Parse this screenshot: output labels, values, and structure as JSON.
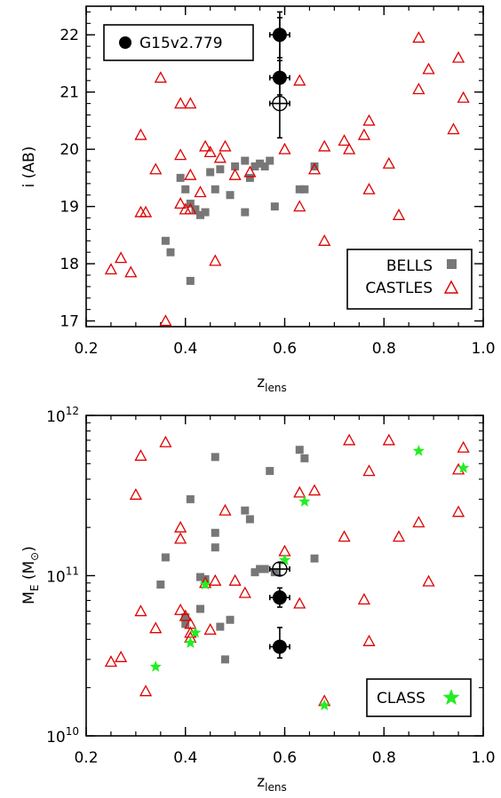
{
  "chart_data": [
    {
      "type": "scatter",
      "xlabel": "z",
      "xlabel_sub": "lens",
      "ylabel": "i (AB)",
      "xlim": [
        0.2,
        1.0
      ],
      "ylim": [
        16.9,
        22.5
      ],
      "x_ticks": [
        0.2,
        0.4,
        0.6,
        0.8,
        1.0
      ],
      "x_tick_labels": [
        "0.2",
        "0.4",
        "0.6",
        "0.8",
        "1.0"
      ],
      "y_ticks": [
        17,
        18,
        19,
        20,
        21,
        22
      ],
      "y_tick_labels": [
        "17",
        "18",
        "19",
        "20",
        "21",
        "22"
      ],
      "series": [
        {
          "name": "BELLS",
          "marker": "square",
          "color": "#777777",
          "points": [
            [
              0.36,
              18.4
            ],
            [
              0.37,
              18.2
            ],
            [
              0.39,
              19.5
            ],
            [
              0.4,
              19.3
            ],
            [
              0.41,
              19.05
            ],
            [
              0.41,
              17.7
            ],
            [
              0.42,
              18.95
            ],
            [
              0.43,
              18.85
            ],
            [
              0.44,
              18.9
            ],
            [
              0.45,
              19.6
            ],
            [
              0.46,
              19.3
            ],
            [
              0.47,
              19.65
            ],
            [
              0.49,
              19.2
            ],
            [
              0.5,
              19.7
            ],
            [
              0.52,
              19.8
            ],
            [
              0.52,
              18.9
            ],
            [
              0.53,
              19.5
            ],
            [
              0.54,
              19.7
            ],
            [
              0.55,
              19.75
            ],
            [
              0.56,
              19.7
            ],
            [
              0.57,
              19.8
            ],
            [
              0.58,
              19.0
            ],
            [
              0.63,
              19.3
            ],
            [
              0.64,
              19.3
            ],
            [
              0.66,
              19.7
            ]
          ]
        },
        {
          "name": "CASTLES",
          "marker": "triangle",
          "color": "#dd0000",
          "points": [
            [
              0.25,
              17.9
            ],
            [
              0.27,
              18.1
            ],
            [
              0.29,
              17.85
            ],
            [
              0.31,
              20.25
            ],
            [
              0.31,
              18.9
            ],
            [
              0.32,
              18.9
            ],
            [
              0.34,
              19.65
            ],
            [
              0.35,
              21.25
            ],
            [
              0.36,
              17.0
            ],
            [
              0.39,
              20.8
            ],
            [
              0.39,
              19.9
            ],
            [
              0.39,
              19.05
            ],
            [
              0.4,
              18.95
            ],
            [
              0.41,
              20.8
            ],
            [
              0.41,
              19.55
            ],
            [
              0.41,
              18.95
            ],
            [
              0.43,
              19.25
            ],
            [
              0.44,
              20.05
            ],
            [
              0.45,
              19.95
            ],
            [
              0.46,
              18.05
            ],
            [
              0.47,
              19.85
            ],
            [
              0.48,
              20.05
            ],
            [
              0.5,
              19.55
            ],
            [
              0.53,
              19.6
            ],
            [
              0.6,
              20.0
            ],
            [
              0.63,
              21.2
            ],
            [
              0.63,
              19.0
            ],
            [
              0.66,
              19.65
            ],
            [
              0.68,
              20.05
            ],
            [
              0.68,
              18.4
            ],
            [
              0.72,
              20.15
            ],
            [
              0.73,
              20.0
            ],
            [
              0.76,
              20.25
            ],
            [
              0.77,
              20.5
            ],
            [
              0.77,
              19.3
            ],
            [
              0.81,
              19.75
            ],
            [
              0.83,
              18.85
            ],
            [
              0.87,
              21.05
            ],
            [
              0.87,
              21.95
            ],
            [
              0.89,
              21.4
            ],
            [
              0.94,
              20.35
            ],
            [
              0.95,
              21.6
            ],
            [
              0.96,
              20.9
            ]
          ]
        },
        {
          "name": "G15v2.779",
          "marker": "circle",
          "color": "#000000",
          "points": [
            [
              0.59,
              22.0
            ],
            [
              0.59,
              21.25
            ]
          ],
          "y_err": [
            [
              0.4,
              0.4
            ],
            [
              0.3,
              0.3
            ]
          ],
          "x_err": 0.02
        },
        {
          "name": "G15v2.779 (open)",
          "marker": "open-circle-cross",
          "color": "#000000",
          "points": [
            [
              0.59,
              20.8
            ]
          ],
          "y_err": [
            [
              1.5,
              0.6
            ]
          ],
          "x_err": 0.02
        }
      ],
      "legend_upper": {
        "position": "top-left",
        "label": "G15v2.779"
      },
      "legend_lower": {
        "position": "bottom-right",
        "labels": [
          "BELLS",
          "CASTLES"
        ]
      }
    },
    {
      "type": "scatter",
      "xlabel": "z",
      "xlabel_sub": "lens",
      "ylabel": "M",
      "ylabel_sub": "E",
      "ylabel_tail": " (M",
      "ylabel_end": ")",
      "ylabel_sun": "⊙",
      "yscale": "log",
      "xlim": [
        0.2,
        1.0
      ],
      "ylim": [
        10000000000.0,
        1000000000000.0
      ],
      "x_ticks": [
        0.2,
        0.4,
        0.6,
        0.8,
        1.0
      ],
      "x_tick_labels": [
        "0.2",
        "0.4",
        "0.6",
        "0.8",
        "1.0"
      ],
      "y_ticks": [
        10000000000.0,
        100000000000.0,
        1000000000000.0
      ],
      "y_tick_base": "10",
      "y_tick_exps": [
        "10",
        "11",
        "12"
      ],
      "series": [
        {
          "name": "BELLS",
          "marker": "square",
          "color": "#777777",
          "points": [
            [
              0.36,
              130000000000.0
            ],
            [
              0.35,
              88000000000.0
            ],
            [
              0.4,
              55000000000.0
            ],
            [
              0.4,
              50000000000.0
            ],
            [
              0.41,
              300000000000.0
            ],
            [
              0.43,
              98000000000.0
            ],
            [
              0.43,
              62000000000.0
            ],
            [
              0.44,
              95000000000.0
            ],
            [
              0.46,
              185000000000.0
            ],
            [
              0.46,
              150000000000.0
            ],
            [
              0.46,
              550000000000.0
            ],
            [
              0.47,
              48000000000.0
            ],
            [
              0.48,
              30000000000.0
            ],
            [
              0.49,
              53000000000.0
            ],
            [
              0.52,
              255000000000.0
            ],
            [
              0.53,
              225000000000.0
            ],
            [
              0.54,
              105000000000.0
            ],
            [
              0.55,
              110000000000.0
            ],
            [
              0.56,
              110000000000.0
            ],
            [
              0.57,
              450000000000.0
            ],
            [
              0.58,
              105000000000.0
            ],
            [
              0.63,
              610000000000.0
            ],
            [
              0.64,
              540000000000.0
            ],
            [
              0.66,
              128000000000.0
            ]
          ]
        },
        {
          "name": "CASTLES",
          "marker": "triangle",
          "color": "#dd0000",
          "points": [
            [
              0.25,
              29000000000.0
            ],
            [
              0.27,
              31000000000.0
            ],
            [
              0.3,
              320000000000.0
            ],
            [
              0.31,
              560000000000.0
            ],
            [
              0.31,
              60000000000.0
            ],
            [
              0.32,
              19000000000.0
            ],
            [
              0.34,
              47000000000.0
            ],
            [
              0.36,
              680000000000.0
            ],
            [
              0.39,
              200000000000.0
            ],
            [
              0.39,
              170000000000.0
            ],
            [
              0.39,
              61000000000.0
            ],
            [
              0.4,
              56000000000.0
            ],
            [
              0.41,
              41000000000.0
            ],
            [
              0.41,
              44000000000.0
            ],
            [
              0.41,
              50000000000.0
            ],
            [
              0.44,
              90000000000.0
            ],
            [
              0.45,
              46000000000.0
            ],
            [
              0.46,
              93000000000.0
            ],
            [
              0.48,
              255000000000.0
            ],
            [
              0.5,
              93000000000.0
            ],
            [
              0.52,
              78000000000.0
            ],
            [
              0.6,
              142000000000.0
            ],
            [
              0.63,
              330000000000.0
            ],
            [
              0.63,
              67000000000.0
            ],
            [
              0.66,
              340000000000.0
            ],
            [
              0.68,
              16500000000.0
            ],
            [
              0.72,
              175000000000.0
            ],
            [
              0.73,
              700000000000.0
            ],
            [
              0.76,
              71000000000.0
            ],
            [
              0.77,
              450000000000.0
            ],
            [
              0.77,
              39000000000.0
            ],
            [
              0.81,
              700000000000.0
            ],
            [
              0.83,
              175000000000.0
            ],
            [
              0.87,
              215000000000.0
            ],
            [
              0.89,
              92000000000.0
            ],
            [
              0.95,
              250000000000.0
            ],
            [
              0.95,
              460000000000.0
            ],
            [
              0.96,
              630000000000.0
            ]
          ]
        },
        {
          "name": "CLASS",
          "marker": "star",
          "color": "#22ee22",
          "points": [
            [
              0.34,
              27000000000.0
            ],
            [
              0.41,
              38000000000.0
            ],
            [
              0.42,
              44000000000.0
            ],
            [
              0.44,
              88000000000.0
            ],
            [
              0.6,
              125000000000.0
            ],
            [
              0.64,
              290000000000.0
            ],
            [
              0.68,
              15500000000.0
            ],
            [
              0.87,
              600000000000.0
            ],
            [
              0.96,
              470000000000.0
            ]
          ]
        },
        {
          "name": "G15v2.779",
          "marker": "circle",
          "color": "#000000",
          "points": [
            [
              0.59,
              73000000000.0
            ],
            [
              0.59,
              36000000000.0
            ]
          ],
          "y_err_log": [
            [
              0.06,
              0.06
            ],
            [
              0.12,
              0.07
            ]
          ],
          "x_err": 0.02
        },
        {
          "name": "G15v2.779 (open)",
          "marker": "open-circle-cross",
          "color": "#000000",
          "points": [
            [
              0.59,
              110000000000.0
            ]
          ],
          "y_err_log": [
            [
              0.04,
              0.04
            ]
          ],
          "x_err": 0.02
        }
      ],
      "legend_lower": {
        "position": "bottom-right",
        "labels": [
          "CLASS"
        ]
      }
    }
  ]
}
